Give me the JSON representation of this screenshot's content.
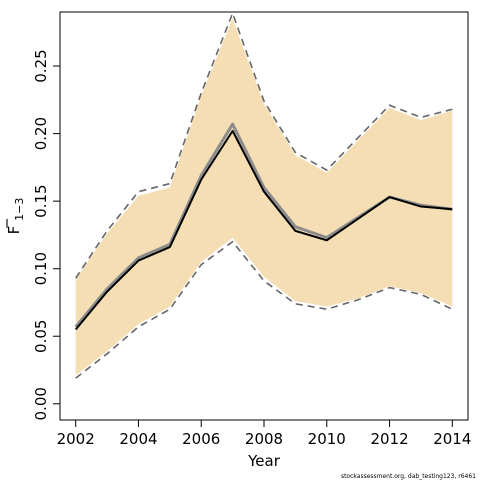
{
  "chart_data": {
    "type": "area",
    "xlabel": "Year",
    "ylabel": "F",
    "ylabel_subscript": "1−3",
    "xlim": [
      2001.5,
      2014.5
    ],
    "ylim": [
      -0.012,
      0.29
    ],
    "xticks": [
      2002,
      2004,
      2006,
      2008,
      2010,
      2012,
      2014
    ],
    "xtick_labels": [
      "2002",
      "2004",
      "2006",
      "2008",
      "2010",
      "2012",
      "2014"
    ],
    "yticks": [
      0.0,
      0.05,
      0.1,
      0.15,
      0.2,
      0.25
    ],
    "ytick_labels": [
      "0.00",
      "0.05",
      "0.10",
      "0.15",
      "0.20",
      "0.25"
    ],
    "grid": false,
    "x": [
      2002,
      2003,
      2004,
      2005,
      2006,
      2007,
      2008,
      2009,
      2010,
      2011,
      2012,
      2013,
      2014
    ],
    "series": [
      {
        "role": "band_upper",
        "values": [
          0.092,
          0.126,
          0.154,
          0.16,
          0.228,
          0.285,
          0.222,
          0.184,
          0.171,
          0.195,
          0.219,
          0.21,
          0.217
        ]
      },
      {
        "role": "band_lower",
        "values": [
          0.021,
          0.039,
          0.059,
          0.072,
          0.105,
          0.123,
          0.094,
          0.076,
          0.072,
          0.078,
          0.087,
          0.082,
          0.072
        ]
      },
      {
        "role": "dashed_upper",
        "values": [
          0.093,
          0.128,
          0.157,
          0.163,
          0.23,
          0.289,
          0.224,
          0.186,
          0.173,
          0.197,
          0.221,
          0.212,
          0.218
        ]
      },
      {
        "role": "dashed_lower",
        "values": [
          0.019,
          0.037,
          0.057,
          0.07,
          0.103,
          0.12,
          0.091,
          0.074,
          0.07,
          0.077,
          0.086,
          0.081,
          0.07
        ]
      },
      {
        "role": "grey_estimate",
        "values": [
          0.057,
          0.085,
          0.108,
          0.118,
          0.169,
          0.207,
          0.16,
          0.131,
          0.123,
          0.138,
          0.153,
          0.147,
          0.144
        ]
      },
      {
        "role": "black_estimate",
        "values": [
          0.055,
          0.083,
          0.106,
          0.116,
          0.166,
          0.202,
          0.157,
          0.128,
          0.121,
          0.137,
          0.153,
          0.146,
          0.144
        ]
      }
    ],
    "colors": {
      "band": "#f5deb3",
      "dashed": "#666666",
      "grey_line": "#8c8c8c",
      "black_line": "#000000"
    }
  },
  "footer": "stockassessment.org, dab_testing123, r6461"
}
